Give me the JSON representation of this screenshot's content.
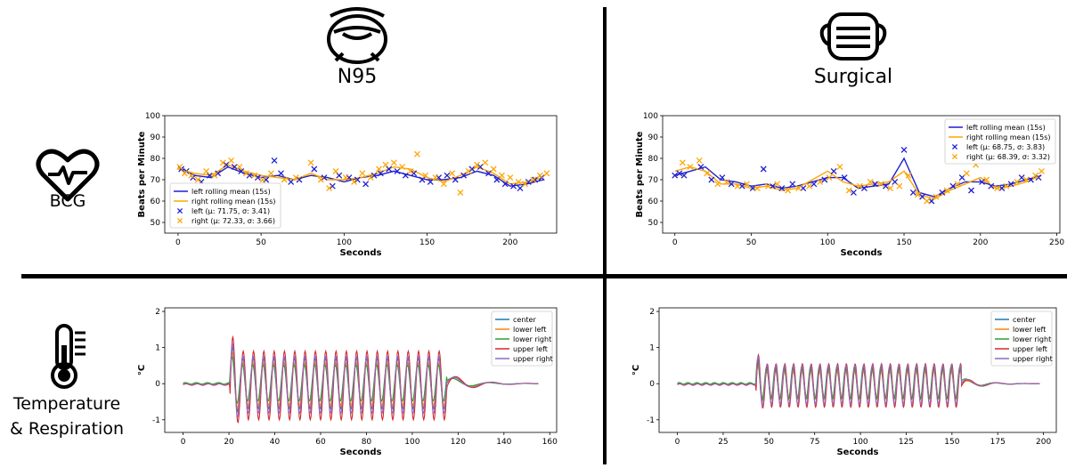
{
  "columns": {
    "n95": "N95",
    "surgical": "Surgical"
  },
  "rows": {
    "bcg": "BCG",
    "temp_line1": "Temperature",
    "temp_line2": "& Respiration"
  },
  "colors": {
    "blue": "#1f1fd0",
    "orange": "#ffa500",
    "tab_blue": "#1f77b4",
    "tab_orange": "#ff7f0e",
    "tab_green": "#2ca02c",
    "tab_red": "#d62728",
    "tab_purple": "#9467bd"
  },
  "icons": [
    "n95-mask-icon",
    "surgical-mask-icon",
    "heart-pulse-icon",
    "thermometer-icon"
  ],
  "chart_data": [
    {
      "id": "bcg_n95",
      "type": "scatter",
      "xlabel": "Seconds",
      "ylabel": "Beats per Minute",
      "xlim": [
        -8,
        228
      ],
      "ylim": [
        45,
        100
      ],
      "xticks": [
        0,
        50,
        100,
        150,
        200
      ],
      "yticks": [
        50,
        60,
        70,
        80,
        90,
        100
      ],
      "legend_position": "lower-left",
      "series": [
        {
          "name": "left rolling mean (15s)",
          "kind": "line",
          "color": "#1f1fd0",
          "x": [
            0,
            10,
            20,
            30,
            40,
            50,
            60,
            70,
            80,
            90,
            100,
            110,
            120,
            130,
            140,
            150,
            160,
            170,
            180,
            190,
            200,
            210,
            220
          ],
          "y": [
            76,
            72,
            71,
            76,
            73,
            71,
            72,
            70,
            72,
            71,
            69,
            71,
            72,
            74,
            72,
            70,
            70,
            71,
            74,
            72,
            67,
            68,
            70
          ]
        },
        {
          "name": "right rolling mean (15s)",
          "kind": "line",
          "color": "#ffa500",
          "x": [
            0,
            10,
            20,
            30,
            40,
            50,
            60,
            70,
            80,
            90,
            100,
            110,
            120,
            130,
            140,
            150,
            160,
            170,
            180,
            190,
            200,
            210,
            220
          ],
          "y": [
            75,
            73,
            72,
            77,
            74,
            72,
            71,
            70,
            73,
            70,
            70,
            71,
            73,
            76,
            75,
            71,
            69,
            72,
            76,
            73,
            68,
            69,
            71
          ]
        },
        {
          "name": "left (μ: 71.75, σ: 3.41)",
          "kind": "points",
          "marker": "x",
          "color": "#1f1fd0",
          "x": [
            2,
            5,
            9,
            14,
            19,
            24,
            29,
            34,
            38,
            43,
            48,
            53,
            58,
            62,
            68,
            73,
            82,
            88,
            93,
            97,
            103,
            108,
            113,
            118,
            122,
            127,
            132,
            137,
            142,
            147,
            152,
            157,
            162,
            167,
            172,
            177,
            182,
            187,
            192,
            197,
            202,
            206,
            211,
            215,
            219
          ],
          "y": [
            75,
            74,
            71,
            69,
            72,
            73,
            77,
            76,
            74,
            72,
            71,
            70,
            79,
            73,
            69,
            70,
            75,
            71,
            67,
            72,
            71,
            70,
            68,
            72,
            73,
            75,
            74,
            72,
            73,
            70,
            69,
            71,
            72,
            70,
            72,
            75,
            76,
            73,
            70,
            68,
            67,
            66,
            69,
            70,
            71
          ]
        },
        {
          "name": "right (μ: 72.33, σ: 3.66)",
          "kind": "points",
          "marker": "x",
          "color": "#ffa500",
          "x": [
            1,
            4,
            8,
            12,
            17,
            22,
            27,
            32,
            37,
            41,
            46,
            51,
            56,
            64,
            71,
            80,
            86,
            91,
            95,
            101,
            106,
            111,
            116,
            121,
            125,
            130,
            135,
            140,
            144,
            149,
            155,
            160,
            165,
            170,
            175,
            180,
            185,
            190,
            195,
            200,
            205,
            209,
            214,
            218,
            222
          ],
          "y": [
            76,
            73,
            72,
            70,
            74,
            72,
            78,
            79,
            76,
            73,
            72,
            70,
            73,
            70,
            71,
            78,
            70,
            66,
            74,
            71,
            69,
            73,
            71,
            75,
            77,
            78,
            76,
            74,
            82,
            72,
            71,
            68,
            73,
            64,
            74,
            77,
            78,
            75,
            72,
            71,
            69,
            68,
            70,
            72,
            73
          ]
        }
      ]
    },
    {
      "id": "bcg_surgical",
      "type": "scatter",
      "xlabel": "Seconds",
      "ylabel": "Beats per Minute",
      "xlim": [
        -8,
        252
      ],
      "ylim": [
        45,
        100
      ],
      "xticks": [
        0,
        50,
        100,
        150,
        200,
        250
      ],
      "yticks": [
        50,
        60,
        70,
        80,
        90,
        100
      ],
      "legend_position": "upper-right",
      "series": [
        {
          "name": "left rolling mean (15s)",
          "kind": "line",
          "color": "#1f1fd0",
          "x": [
            0,
            10,
            20,
            30,
            40,
            50,
            60,
            70,
            80,
            90,
            100,
            110,
            120,
            130,
            140,
            150,
            160,
            170,
            180,
            190,
            200,
            210,
            220,
            230,
            240
          ],
          "y": [
            72,
            74,
            76,
            70,
            69,
            67,
            68,
            66,
            67,
            69,
            71,
            71,
            66,
            67,
            68,
            80,
            64,
            62,
            66,
            69,
            69,
            67,
            68,
            70,
            72
          ]
        },
        {
          "name": "right rolling mean (15s)",
          "kind": "line",
          "color": "#ffa500",
          "x": [
            0,
            10,
            20,
            30,
            40,
            50,
            60,
            70,
            80,
            90,
            100,
            110,
            120,
            130,
            140,
            150,
            160,
            170,
            180,
            190,
            200,
            210,
            220,
            230,
            240
          ],
          "y": [
            74,
            76,
            74,
            68,
            68,
            66,
            67,
            65,
            66,
            70,
            74,
            69,
            67,
            68,
            69,
            74,
            63,
            61,
            65,
            68,
            71,
            66,
            67,
            69,
            72
          ]
        },
        {
          "name": "left (μ: 68.75, σ: 3.83)",
          "kind": "points",
          "marker": "x",
          "color": "#1f1fd0",
          "x": [
            0,
            3,
            6,
            17,
            24,
            31,
            37,
            44,
            51,
            58,
            64,
            70,
            77,
            84,
            91,
            98,
            104,
            111,
            117,
            124,
            131,
            138,
            144,
            150,
            156,
            162,
            168,
            175,
            182,
            188,
            194,
            201,
            207,
            214,
            220,
            227,
            233,
            238
          ],
          "y": [
            72,
            73,
            72,
            76,
            70,
            71,
            68,
            67,
            66,
            75,
            67,
            66,
            68,
            66,
            68,
            70,
            74,
            71,
            64,
            66,
            68,
            67,
            69,
            84,
            64,
            62,
            60,
            64,
            67,
            71,
            65,
            69,
            67,
            66,
            68,
            71,
            70,
            71
          ]
        },
        {
          "name": "right (μ: 68.39, σ: 3.32)",
          "kind": "points",
          "marker": "x",
          "color": "#ffa500",
          "x": [
            5,
            10,
            16,
            21,
            28,
            34,
            41,
            47,
            54,
            61,
            67,
            74,
            81,
            88,
            95,
            101,
            108,
            114,
            121,
            128,
            135,
            141,
            147,
            153,
            159,
            165,
            171,
            178,
            185,
            191,
            197,
            204,
            211,
            217,
            224,
            230,
            236,
            240
          ],
          "y": [
            78,
            76,
            79,
            73,
            68,
            69,
            67,
            68,
            66,
            67,
            68,
            65,
            66,
            67,
            69,
            71,
            76,
            65,
            67,
            69,
            68,
            66,
            67,
            72,
            63,
            60,
            62,
            65,
            68,
            73,
            77,
            70,
            66,
            67,
            69,
            70,
            72,
            74
          ]
        }
      ]
    },
    {
      "id": "temp_n95",
      "type": "line",
      "xlabel": "Seconds",
      "ylabel": "°C",
      "xlim": [
        -8,
        163
      ],
      "ylim": [
        -1.35,
        2.1
      ],
      "xticks": [
        0,
        20,
        40,
        60,
        80,
        100,
        120,
        140,
        160
      ],
      "yticks": [
        -1,
        0,
        1,
        2
      ],
      "legend_position": "upper-right",
      "signal": {
        "t_on": 20.5,
        "t_off": 115,
        "period": 4.5,
        "duration": 155
      },
      "series": [
        {
          "name": "center",
          "color": "#1f77b4",
          "amplitude": 0.7,
          "phase": 0.0,
          "offset": 0.0
        },
        {
          "name": "lower left",
          "color": "#ff7f0e",
          "amplitude": 0.6,
          "phase": 0.2,
          "offset": -0.02
        },
        {
          "name": "lower right",
          "color": "#2ca02c",
          "amplitude": 0.5,
          "phase": 0.35,
          "offset": 0.02
        },
        {
          "name": "upper left",
          "color": "#d62728",
          "amplitude": 0.95,
          "phase": -0.15,
          "offset": -0.05
        },
        {
          "name": "upper right",
          "color": "#9467bd",
          "amplitude": 0.8,
          "phase": 0.1,
          "offset": -0.03
        }
      ]
    },
    {
      "id": "temp_surgical",
      "type": "line",
      "xlabel": "Seconds",
      "ylabel": "°C",
      "xlim": [
        -10,
        207
      ],
      "ylim": [
        -1.35,
        2.1
      ],
      "xticks": [
        0,
        25,
        50,
        75,
        100,
        125,
        150,
        175,
        200
      ],
      "yticks": [
        -1,
        0,
        1,
        2
      ],
      "legend_position": "upper-right",
      "signal": {
        "t_on": 43,
        "t_off": 155,
        "period": 4.8,
        "duration": 198
      },
      "series": [
        {
          "name": "center",
          "color": "#1f77b4",
          "amplitude": 0.4,
          "phase": 0.0,
          "offset": 0.0
        },
        {
          "name": "lower left",
          "color": "#ff7f0e",
          "amplitude": 0.35,
          "phase": 0.2,
          "offset": -0.02
        },
        {
          "name": "lower right",
          "color": "#2ca02c",
          "amplitude": 0.45,
          "phase": 0.35,
          "offset": 0.02
        },
        {
          "name": "upper left",
          "color": "#d62728",
          "amplitude": 0.6,
          "phase": -0.15,
          "offset": -0.05
        },
        {
          "name": "upper right",
          "color": "#9467bd",
          "amplitude": 0.55,
          "phase": 0.1,
          "offset": -0.03
        }
      ]
    }
  ]
}
